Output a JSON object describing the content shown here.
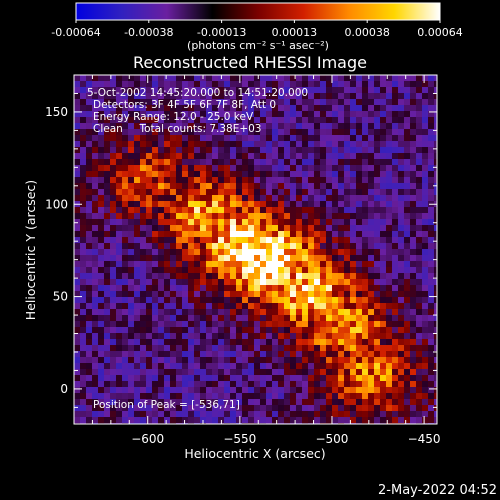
{
  "chart_data": {
    "type": "heatmap",
    "title": "Reconstructed RHESSI Image",
    "xlabel": "Heliocentric X (arcsec)",
    "ylabel": "Heliocentric Y (arcsec)",
    "xlim": [
      -640,
      -443
    ],
    "ylim": [
      -19,
      170
    ],
    "xticks": [
      -600,
      -550,
      -500,
      -450
    ],
    "yticks": [
      0,
      50,
      100,
      150
    ],
    "colorbar": {
      "ticks": [
        "-0.00064",
        "-0.00038",
        "-0.00013",
        "0.00013",
        "0.00038",
        "0.00064"
      ],
      "unit_text": "(photons cm⁻² s⁻¹ asec⁻²)",
      "range": [
        -0.00064,
        0.00064
      ],
      "colors": [
        "#0000e0",
        "#3020c0",
        "#6a1fa0",
        "#000000",
        "#7a0000",
        "#d22000",
        "#ff8a00",
        "#ffd600",
        "#ffffff"
      ]
    },
    "info_lines": [
      "5-Oct-2002 14:45:20.000 to 14:51:20.000",
      "Detectors: 3F 4F 5F 6F 7F 8F, Att 0",
      "Energy Range: 12.0 - 25.0 keV",
      "Clean     Total counts: 7.38E+03"
    ],
    "peak_text": "Position of Peak = [-536,71]",
    "peak": {
      "x": -536,
      "y": 71
    },
    "emission_ridge": [
      {
        "x": -600,
        "y": 115,
        "level": 0.5
      },
      {
        "x": -570,
        "y": 95,
        "level": 0.7
      },
      {
        "x": -550,
        "y": 80,
        "level": 0.9
      },
      {
        "x": -536,
        "y": 71,
        "level": 1.0
      },
      {
        "x": -515,
        "y": 55,
        "level": 0.8
      },
      {
        "x": -495,
        "y": 35,
        "level": 0.65
      },
      {
        "x": -480,
        "y": 10,
        "level": 0.6
      }
    ],
    "grid": false
  },
  "footer_date": "2-May-2022 04:52"
}
